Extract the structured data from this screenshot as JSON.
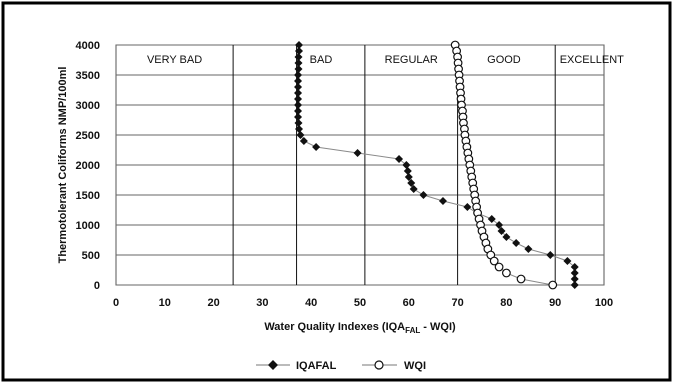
{
  "chart_data": {
    "type": "scatter",
    "xlabel": {
      "prefix": "Water Quality Indexes (IQA",
      "sub": "FAL",
      "suffix": " - WQI)"
    },
    "ylabel": "Thermotolerant Coliforms NMP/100ml",
    "xlim": [
      0,
      100
    ],
    "ylim": [
      0,
      4000
    ],
    "xticks": [
      0,
      10,
      20,
      30,
      40,
      50,
      60,
      70,
      80,
      90,
      100
    ],
    "yticks": [
      0,
      500,
      1000,
      1500,
      2000,
      2500,
      3000,
      3500,
      4000
    ],
    "grid": "horizontal",
    "legend_position": "bottom",
    "quality_boundaries": [
      24,
      37,
      51,
      70,
      90
    ],
    "quality_classes": [
      {
        "label": "VERY BAD",
        "x": 12
      },
      {
        "label": "BAD",
        "x": 42
      },
      {
        "label": "REGULAR",
        "x": 60.5
      },
      {
        "label": "GOOD",
        "x": 79.5
      },
      {
        "label": "EXCELLENT",
        "x": 97.5
      }
    ],
    "series": [
      {
        "name": "IQAFAL",
        "marker": "diamond",
        "points": [
          [
            37.5,
            4000
          ],
          [
            37.5,
            3900
          ],
          [
            37.4,
            3800
          ],
          [
            37.4,
            3700
          ],
          [
            37.4,
            3600
          ],
          [
            37.3,
            3500
          ],
          [
            37.3,
            3400
          ],
          [
            37.3,
            3300
          ],
          [
            37.3,
            3200
          ],
          [
            37.3,
            3100
          ],
          [
            37.3,
            3000
          ],
          [
            37.3,
            2900
          ],
          [
            37.3,
            2800
          ],
          [
            37.4,
            2700
          ],
          [
            37.5,
            2600
          ],
          [
            37.8,
            2500
          ],
          [
            38.5,
            2400
          ],
          [
            41,
            2300
          ],
          [
            49.5,
            2200
          ],
          [
            58,
            2100
          ],
          [
            59.5,
            2000
          ],
          [
            59.8,
            1900
          ],
          [
            60,
            1800
          ],
          [
            60.5,
            1700
          ],
          [
            61,
            1600
          ],
          [
            63,
            1500
          ],
          [
            67,
            1400
          ],
          [
            72,
            1300
          ],
          [
            74,
            1200
          ],
          [
            77,
            1100
          ],
          [
            78.5,
            1000
          ],
          [
            79,
            900
          ],
          [
            80,
            800
          ],
          [
            82,
            700
          ],
          [
            84.5,
            600
          ],
          [
            89,
            500
          ],
          [
            92.5,
            400
          ],
          [
            94,
            300
          ],
          [
            94,
            200
          ],
          [
            94,
            100
          ],
          [
            94,
            0
          ]
        ]
      },
      {
        "name": "WQI",
        "marker": "circle",
        "points": [
          [
            69.5,
            4000
          ],
          [
            69.8,
            3900
          ],
          [
            70,
            3800
          ],
          [
            70.1,
            3700
          ],
          [
            70.2,
            3600
          ],
          [
            70.3,
            3500
          ],
          [
            70.4,
            3400
          ],
          [
            70.5,
            3300
          ],
          [
            70.6,
            3200
          ],
          [
            70.7,
            3100
          ],
          [
            70.8,
            3000
          ],
          [
            71,
            2900
          ],
          [
            71.1,
            2800
          ],
          [
            71.2,
            2700
          ],
          [
            71.4,
            2600
          ],
          [
            71.5,
            2500
          ],
          [
            71.7,
            2400
          ],
          [
            71.9,
            2300
          ],
          [
            72.1,
            2200
          ],
          [
            72.3,
            2100
          ],
          [
            72.5,
            2000
          ],
          [
            72.7,
            1900
          ],
          [
            72.9,
            1800
          ],
          [
            73.1,
            1700
          ],
          [
            73.3,
            1600
          ],
          [
            73.5,
            1500
          ],
          [
            73.7,
            1400
          ],
          [
            73.9,
            1300
          ],
          [
            74.1,
            1200
          ],
          [
            74.4,
            1100
          ],
          [
            74.7,
            1000
          ],
          [
            75,
            900
          ],
          [
            75.4,
            800
          ],
          [
            75.8,
            700
          ],
          [
            76.2,
            600
          ],
          [
            76.8,
            500
          ],
          [
            77.5,
            400
          ],
          [
            78.5,
            300
          ],
          [
            80,
            200
          ],
          [
            83,
            100
          ],
          [
            89.5,
            0
          ]
        ]
      }
    ]
  }
}
